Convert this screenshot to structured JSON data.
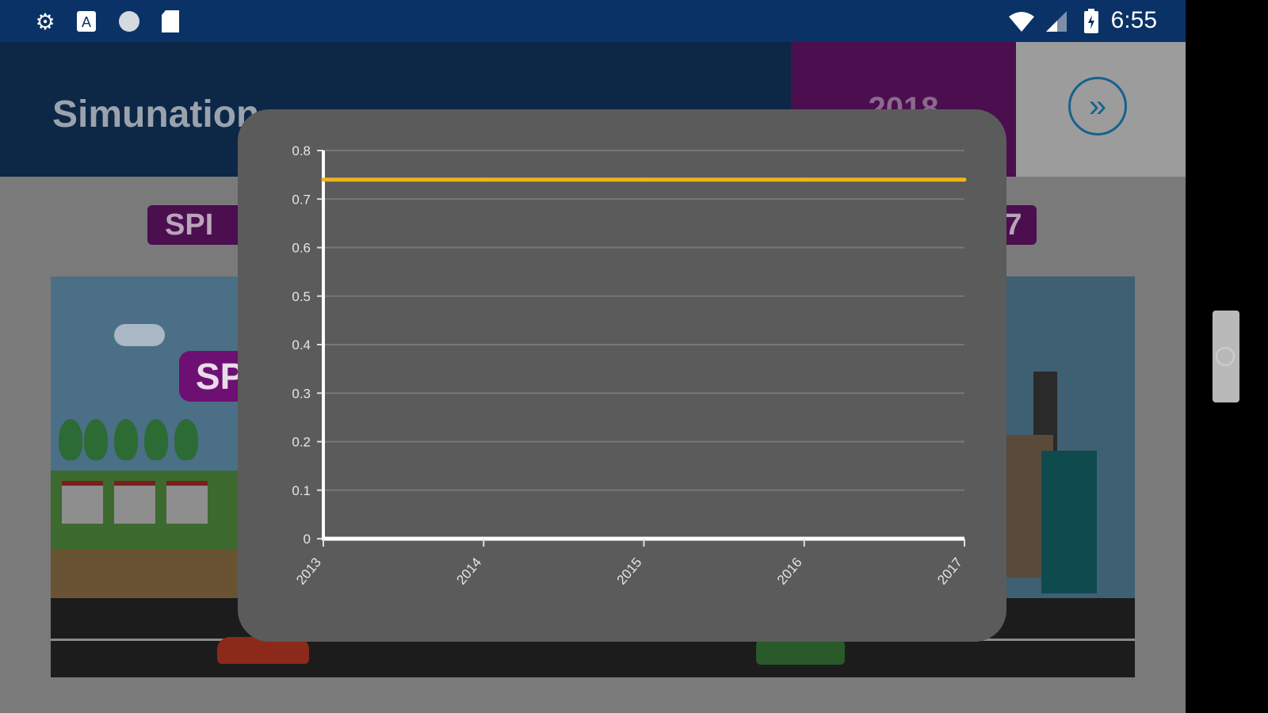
{
  "statusbar": {
    "icons": [
      "settings-icon",
      "text-a-icon",
      "circle-icon",
      "sd-card-icon"
    ],
    "right_icons": [
      "wifi-icon",
      "signal-icon",
      "battery-icon"
    ],
    "time": "6:55"
  },
  "header": {
    "title": "Simunation",
    "year": "2018",
    "next_icon": "double-chevron-right-icon"
  },
  "tags": {
    "spi_top": "SPI",
    "right_fragment": "7"
  },
  "scene": {
    "spi_badge": "SPI"
  },
  "colors": {
    "statusbar": "#0b3266",
    "header": "#0d2747",
    "year_box": "#4b0e4f",
    "spi_badge": "#6e0f73",
    "chart_panel": "#5b5b5b",
    "series_line": "#f0b41e"
  },
  "chart_data": {
    "type": "line",
    "x": [
      "2013",
      "2014",
      "2015",
      "2016",
      "2017"
    ],
    "series": [
      {
        "values": [
          0.74,
          0.74,
          0.74,
          0.74,
          0.74
        ],
        "color": "#f0b41e"
      }
    ],
    "y_ticks": [
      "0",
      "0.1",
      "0.2",
      "0.3",
      "0.4",
      "0.5",
      "0.6",
      "0.7",
      "0.8"
    ],
    "ylim": [
      0,
      0.8
    ],
    "grid": true
  }
}
